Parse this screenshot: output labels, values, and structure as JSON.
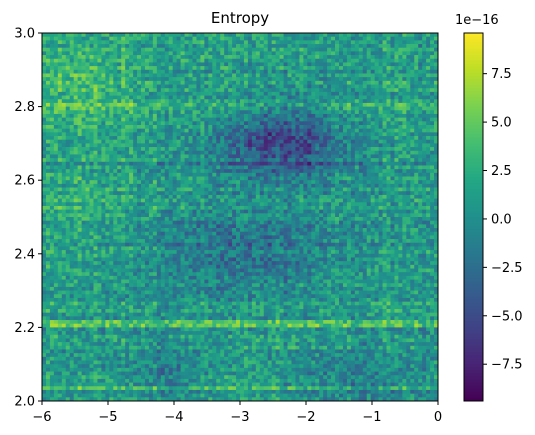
{
  "chart_data": {
    "type": "heatmap",
    "title": "Entropy",
    "xlim": [
      -6,
      0
    ],
    "ylim": [
      2.0,
      3.0
    ],
    "x_ticks": [
      "−6",
      "−5",
      "−4",
      "−3",
      "−2",
      "−1",
      "0"
    ],
    "y_ticks": [
      "2.0",
      "2.2",
      "2.4",
      "2.6",
      "2.8",
      "3.0"
    ],
    "grid": "100x100 cells, noisy field",
    "colormap": "viridis",
    "colorbar": {
      "range": [
        -9.4e-16,
        9.6e-16
      ],
      "offset_label": "1e−16",
      "ticks": [
        "7.5",
        "5.0",
        "2.5",
        "0.0",
        "−2.5",
        "−5.0",
        "−7.5"
      ]
    },
    "field_pattern": {
      "note_low": "dark blue/purple region centered near x=-2.4, y=2.7 and broad lower band near y=2.3-2.5",
      "note_high": "yellow-green streaks along y≈2.21, y≈2.03, and upper-left corner"
    }
  }
}
